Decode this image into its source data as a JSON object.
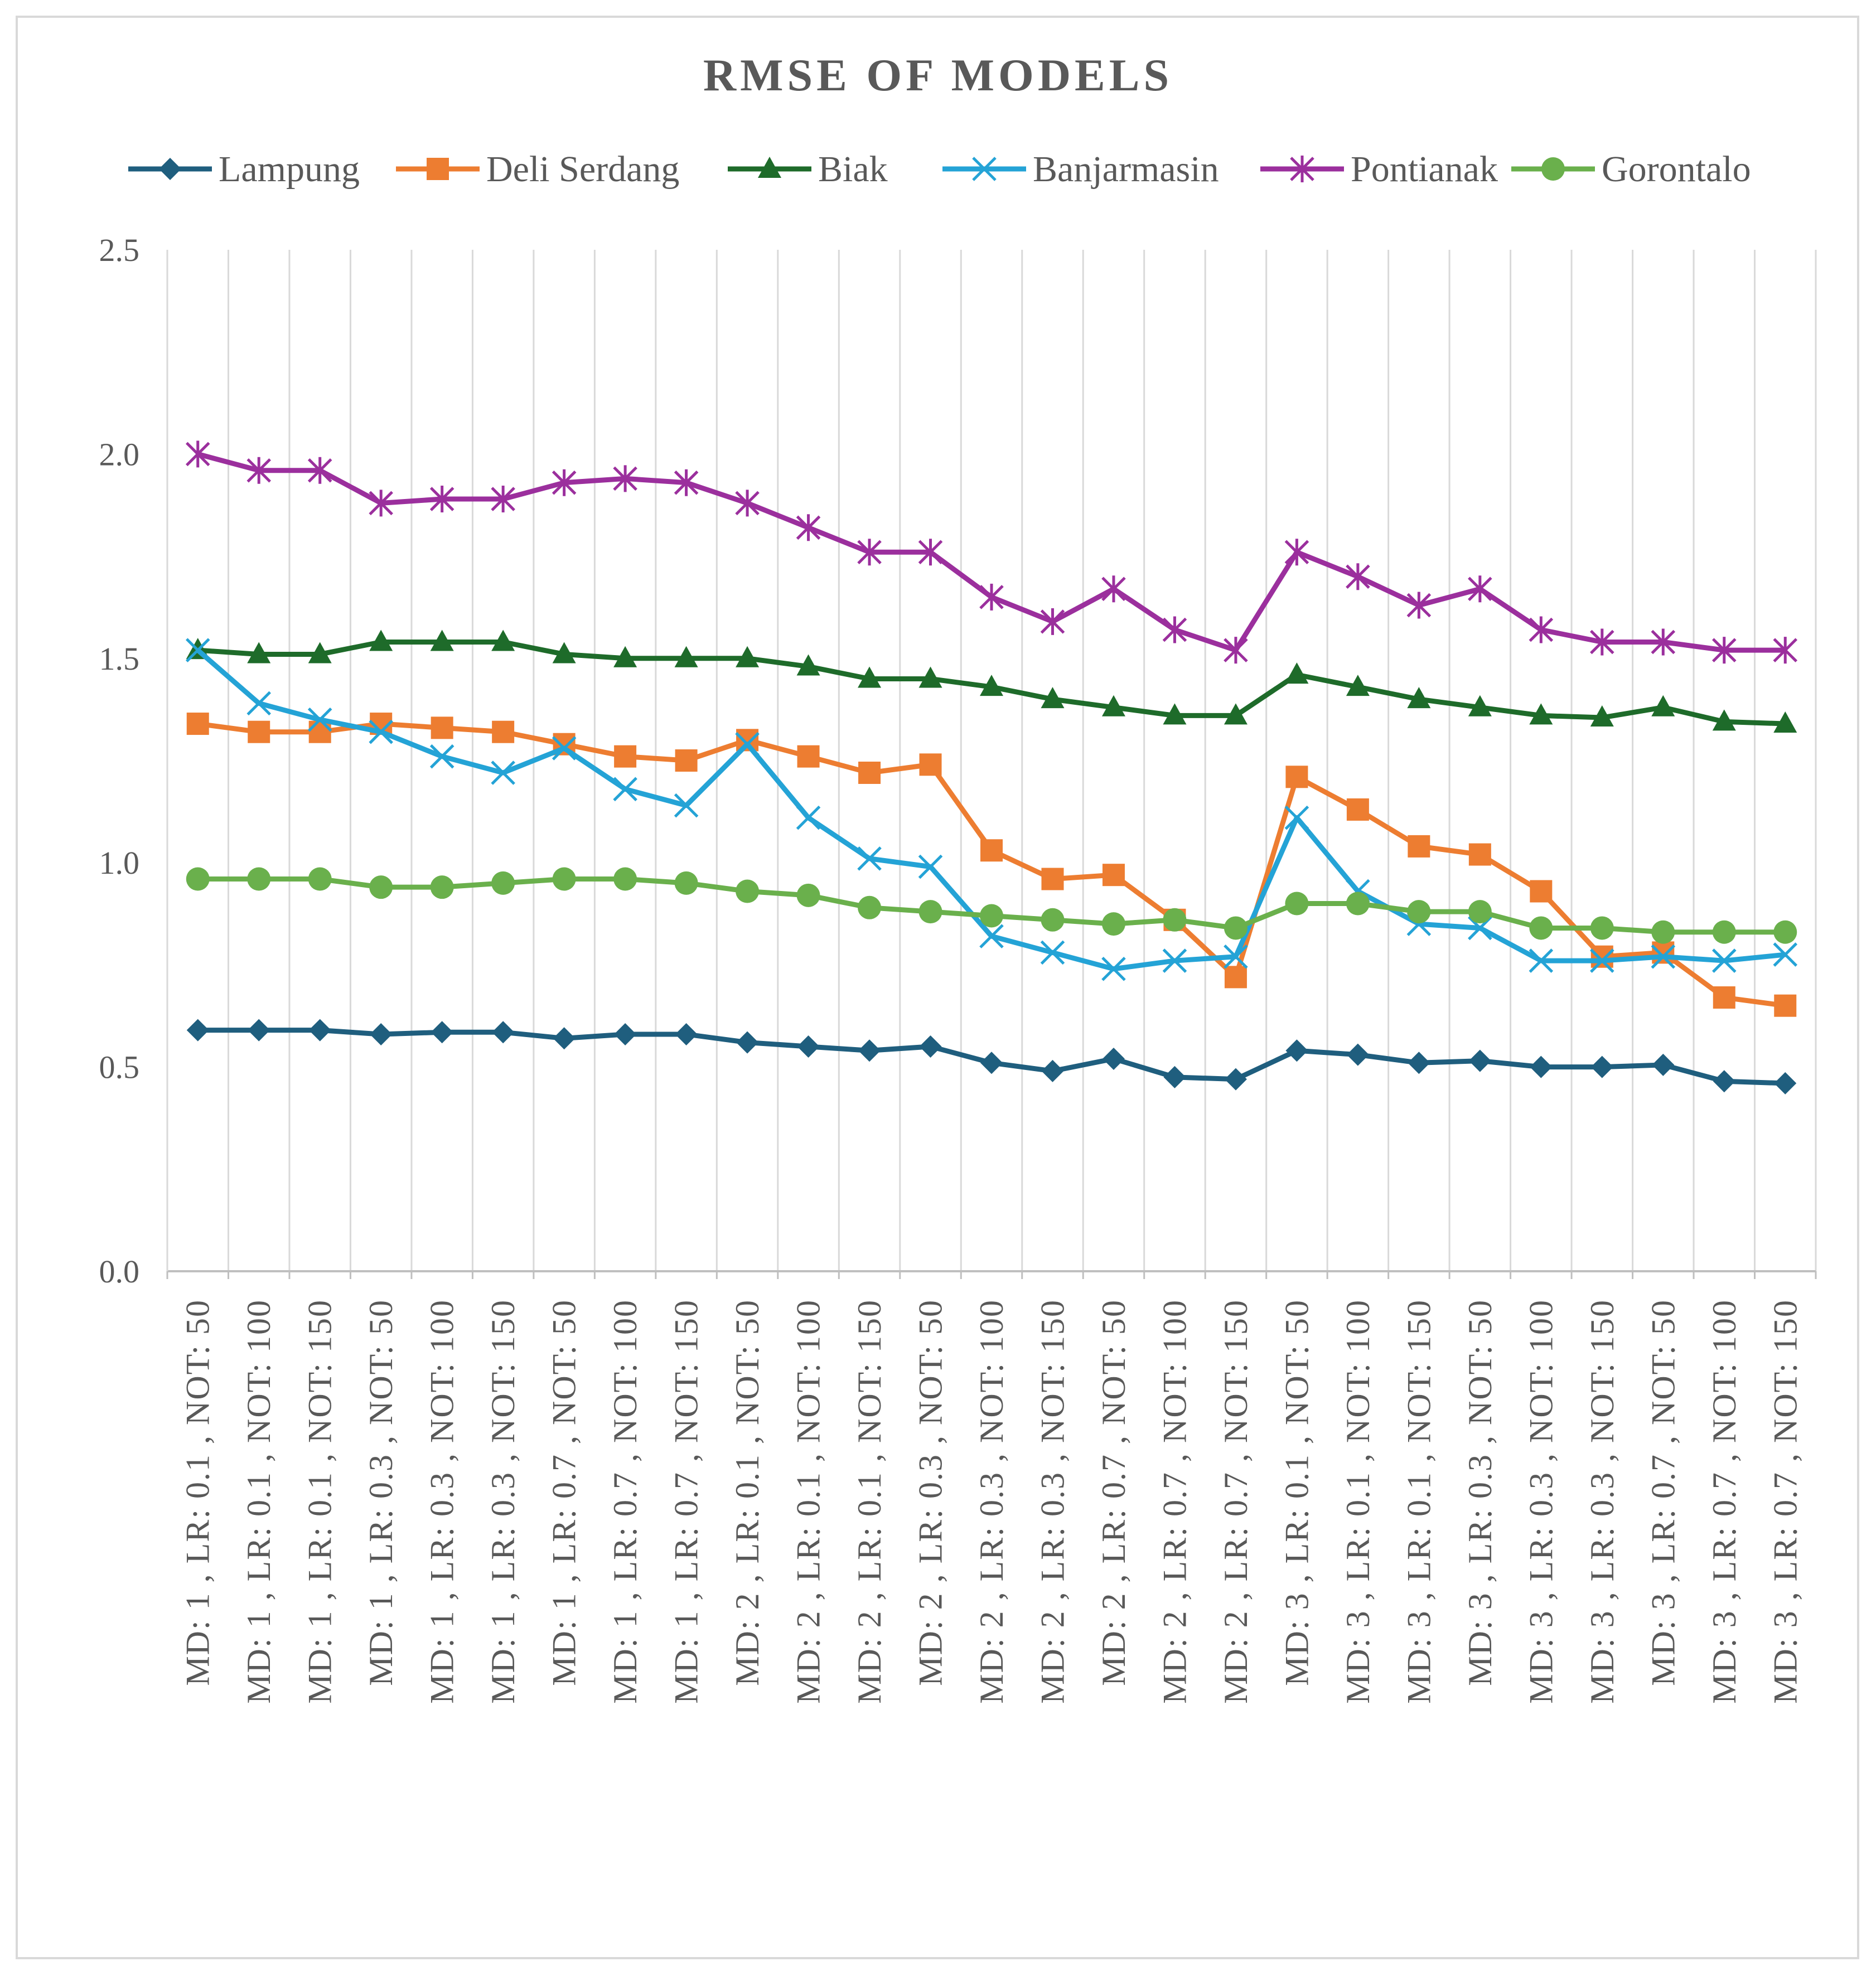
{
  "chart_data": {
    "type": "line",
    "title": "RMSE OF MODELS",
    "xlabel": "",
    "ylabel": "",
    "ylim": [
      0,
      2.5
    ],
    "yticks": [
      "0.0",
      "0.5",
      "1.0",
      "1.5",
      "2.0",
      "2.5"
    ],
    "grid": "vertical",
    "legend": "top",
    "categories": [
      "MD: 1 , LR: 0.1 , NOT: 50",
      "MD: 1 , LR: 0.1 , NOT: 100",
      "MD: 1 , LR: 0.1 , NOT: 150",
      "MD: 1 , LR: 0.3 , NOT: 50",
      "MD: 1 , LR: 0.3 , NOT: 100",
      "MD: 1 , LR: 0.3 , NOT: 150",
      "MD: 1 , LR: 0.7 , NOT: 50",
      "MD: 1 , LR: 0.7 , NOT: 100",
      "MD: 1 , LR: 0.7 , NOT: 150",
      "MD: 2 , LR: 0.1 , NOT: 50",
      "MD: 2 , LR: 0.1 , NOT: 100",
      "MD: 2 , LR: 0.1 , NOT: 150",
      "MD: 2 , LR: 0.3 , NOT: 50",
      "MD: 2 , LR: 0.3 , NOT: 100",
      "MD: 2 , LR: 0.3 , NOT: 150",
      "MD: 2 , LR: 0.7 , NOT: 50",
      "MD: 2 , LR: 0.7 , NOT: 100",
      "MD: 2 , LR: 0.7 , NOT: 150",
      "MD: 3 , LR: 0.1 , NOT: 50",
      "MD: 3 , LR: 0.1 , NOT: 100",
      "MD: 3 , LR: 0.1 , NOT: 150",
      "MD: 3 , LR: 0.3 , NOT: 50",
      "MD: 3 , LR: 0.3 , NOT: 100",
      "MD: 3 , LR: 0.3 , NOT: 150",
      "MD: 3 , LR: 0.7 , NOT: 50",
      "MD: 3 , LR: 0.7 , NOT: 100",
      "MD: 3 , LR: 0.7 , NOT: 150"
    ],
    "series": [
      {
        "name": "Lampung",
        "color": "#1f5e7e",
        "marker": "diamond",
        "values": [
          0.59,
          0.59,
          0.59,
          0.58,
          0.585,
          0.585,
          0.57,
          0.58,
          0.58,
          0.56,
          0.55,
          0.54,
          0.55,
          0.51,
          0.49,
          0.52,
          0.475,
          0.47,
          0.54,
          0.53,
          0.51,
          0.515,
          0.5,
          0.5,
          0.505,
          0.465,
          0.46
        ]
      },
      {
        "name": "Deli Serdang",
        "color": "#ed7d31",
        "marker": "square",
        "values": [
          1.34,
          1.32,
          1.32,
          1.34,
          1.33,
          1.32,
          1.29,
          1.26,
          1.25,
          1.3,
          1.26,
          1.22,
          1.24,
          1.03,
          0.96,
          0.97,
          0.86,
          0.72,
          1.21,
          1.13,
          1.04,
          1.02,
          0.93,
          0.77,
          0.78,
          0.67,
          0.65
        ]
      },
      {
        "name": "Biak",
        "color": "#1e6b2a",
        "marker": "triangle",
        "values": [
          1.52,
          1.51,
          1.51,
          1.54,
          1.54,
          1.54,
          1.51,
          1.5,
          1.5,
          1.5,
          1.48,
          1.45,
          1.45,
          1.43,
          1.4,
          1.38,
          1.36,
          1.36,
          1.46,
          1.43,
          1.4,
          1.38,
          1.36,
          1.355,
          1.38,
          1.345,
          1.34
        ]
      },
      {
        "name": "Banjarmasin",
        "color": "#24a3d6",
        "marker": "x",
        "values": [
          1.52,
          1.39,
          1.35,
          1.32,
          1.26,
          1.22,
          1.28,
          1.18,
          1.14,
          1.29,
          1.11,
          1.01,
          0.99,
          0.82,
          0.78,
          0.74,
          0.76,
          0.77,
          1.11,
          0.93,
          0.85,
          0.84,
          0.76,
          0.76,
          0.77,
          0.76,
          0.775
        ]
      },
      {
        "name": "Pontianak",
        "color": "#9b2f9d",
        "marker": "star",
        "values": [
          2.0,
          1.96,
          1.96,
          1.88,
          1.89,
          1.89,
          1.93,
          1.94,
          1.93,
          1.88,
          1.82,
          1.76,
          1.76,
          1.65,
          1.59,
          1.67,
          1.57,
          1.52,
          1.76,
          1.7,
          1.63,
          1.67,
          1.57,
          1.54,
          1.54,
          1.52,
          1.52
        ]
      },
      {
        "name": "Gorontalo",
        "color": "#6ab04c",
        "marker": "circle",
        "values": [
          0.96,
          0.96,
          0.96,
          0.94,
          0.94,
          0.95,
          0.96,
          0.96,
          0.95,
          0.93,
          0.92,
          0.89,
          0.88,
          0.87,
          0.86,
          0.85,
          0.86,
          0.84,
          0.9,
          0.9,
          0.88,
          0.88,
          0.84,
          0.84,
          0.83,
          0.83,
          0.83
        ]
      }
    ]
  }
}
